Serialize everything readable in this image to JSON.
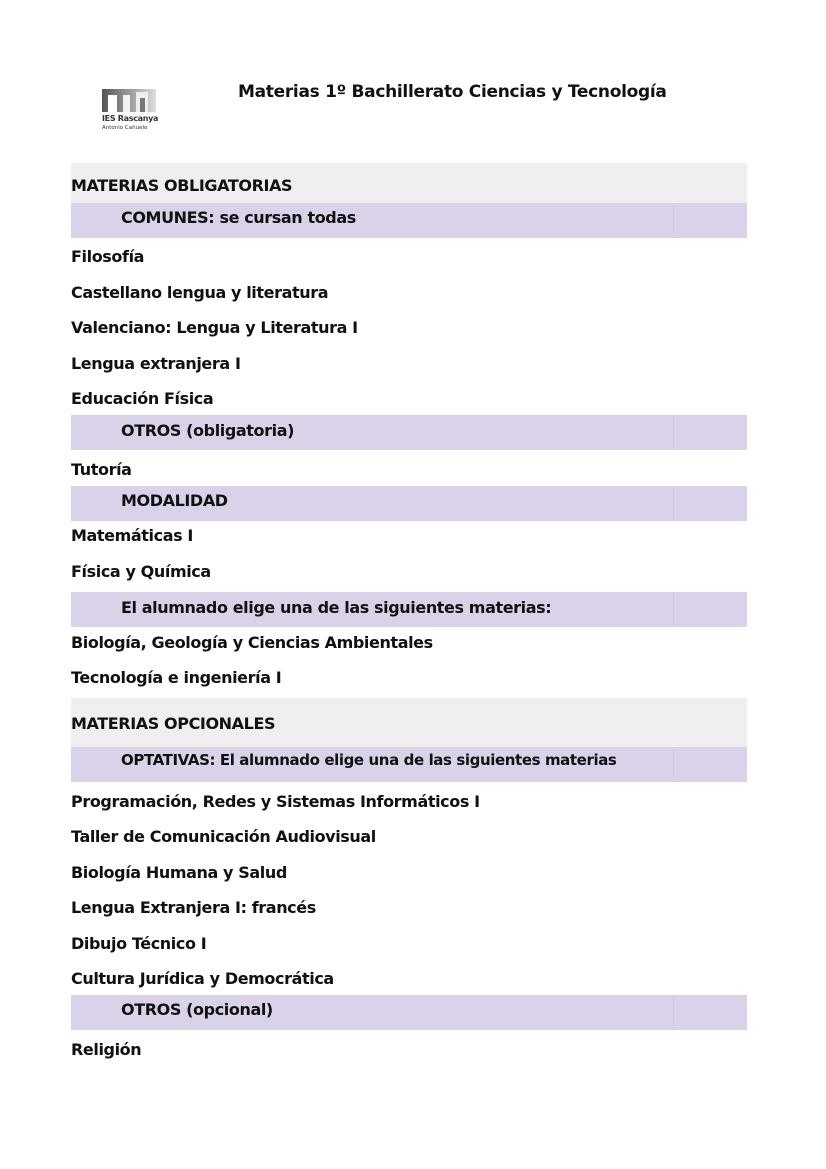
{
  "header": {
    "title": "Materias 1º Bachillerato Ciencias y Tecnología",
    "logo": {
      "line1": "IES Rascanya",
      "line2": "Antonio Cañuelo"
    }
  },
  "colors": {
    "section": "#efefef",
    "subsection": "#d9d2e9"
  },
  "obligatorias": {
    "heading": "MATERIAS OBLIGATORIAS",
    "comunes": {
      "heading": "COMUNES: se cursan todas",
      "items": [
        "Filosofía",
        "Castellano lengua y literatura",
        "Valenciano: Lengua y Literatura I",
        "Lengua extranjera I",
        "Educación Física"
      ]
    },
    "otros": {
      "heading": "OTROS (obligatoria)",
      "items": [
        "Tutoría"
      ]
    },
    "modalidad": {
      "heading": "MODALIDAD",
      "items": [
        "Matemáticas I",
        "Física y Química"
      ]
    },
    "eleccion": {
      "heading": "El alumnado elige una de las siguientes materias:",
      "items": [
        "Biología, Geología y Ciencias Ambientales",
        "Tecnología e ingeniería I"
      ]
    }
  },
  "opcionales": {
    "heading": "MATERIAS OPCIONALES",
    "optativas": {
      "heading": "OPTATIVAS: El alumnado elige una de las siguientes materias",
      "items": [
        "Programación, Redes y Sistemas Informáticos I",
        "Taller de Comunicación Audiovisual",
        "Biología Humana y Salud",
        "Lengua Extranjera I: francés",
        "Dibujo Técnico I",
        "Cultura Jurídica y Democrática"
      ]
    },
    "otros": {
      "heading": "OTROS (opcional)",
      "items": [
        "Religión"
      ]
    }
  }
}
